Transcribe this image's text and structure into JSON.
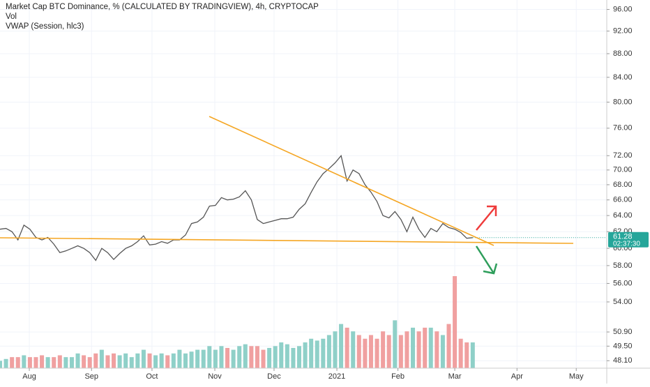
{
  "chart_data": {
    "type": "line",
    "title": "Market Cap BTC Dominance, % (CALCULATED BY TRADINGVIEW), 4h, CRYPTOCAP",
    "indicators": [
      "Vol",
      "VWAP (Session, hlc3)"
    ],
    "countdown": "02:37:30",
    "log_scale": true,
    "ylim": [
      47.4,
      97.8
    ],
    "yticks": [
      {
        "value": 96,
        "label": "96.00"
      },
      {
        "value": 92,
        "label": "92.00"
      },
      {
        "value": 88,
        "label": "88.00"
      },
      {
        "value": 84,
        "label": "84.00"
      },
      {
        "value": 80,
        "label": "80.00"
      },
      {
        "value": 76,
        "label": "76.00"
      },
      {
        "value": 72,
        "label": "72.00"
      },
      {
        "value": 70,
        "label": "70.00"
      },
      {
        "value": 68,
        "label": "68.00"
      },
      {
        "value": 66,
        "label": "66.00"
      },
      {
        "value": 64,
        "label": "64.00"
      },
      {
        "value": 62,
        "label": "62.00"
      },
      {
        "value": 60,
        "label": "60.00"
      },
      {
        "value": 58,
        "label": "58.00"
      },
      {
        "value": 56,
        "label": "56.00"
      },
      {
        "value": 54,
        "label": "54.00"
      },
      {
        "value": 50.9,
        "label": "50.90"
      },
      {
        "value": 49.5,
        "label": "49.50"
      },
      {
        "value": 48.1,
        "label": "48.10"
      }
    ],
    "xlim": [
      0,
      101.4
    ],
    "xticks": [
      {
        "value": 4.9,
        "label": "Aug"
      },
      {
        "value": 15.3,
        "label": "Sep"
      },
      {
        "value": 25.4,
        "label": "Oct"
      },
      {
        "value": 35.9,
        "label": "Nov"
      },
      {
        "value": 45.8,
        "label": "Dec"
      },
      {
        "value": 56.3,
        "label": "2021"
      },
      {
        "value": 66.5,
        "label": "Feb"
      },
      {
        "value": 76,
        "label": "Mar"
      },
      {
        "value": 86.4,
        "label": "Apr"
      },
      {
        "value": 96.3,
        "label": "May"
      }
    ],
    "y2lim": [
      0,
      100
    ],
    "series": [
      {
        "name": "BTC Dominance",
        "color": "#555555",
        "values": [
          62.3,
          62.4,
          62.0,
          61.0,
          62.8,
          62.3,
          61.3,
          61.0,
          61.3,
          60.5,
          59.5,
          59.7,
          60.0,
          60.3,
          60.0,
          59.5,
          58.6,
          60.0,
          59.5,
          58.7,
          59.4,
          60.0,
          60.3,
          60.8,
          61.5,
          60.4,
          60.5,
          60.8,
          60.6,
          61.0,
          61.0,
          61.6,
          63.0,
          63.2,
          63.8,
          65.2,
          65.3,
          66.3,
          66.0,
          66.1,
          66.4,
          67.2,
          66.0,
          63.5,
          63.0,
          63.2,
          63.4,
          63.6,
          63.6,
          63.8,
          64.8,
          65.5,
          67.0,
          68.4,
          69.5,
          70.2,
          71.0,
          72.0,
          68.5,
          70.0,
          69.5,
          68.0,
          67.0,
          65.8,
          64.0,
          63.7,
          64.5,
          63.5,
          62.0,
          63.8,
          62.3,
          61.3,
          62.4,
          62.0,
          63.0,
          62.5,
          62.3,
          61.9,
          61.2,
          61.28
        ]
      },
      {
        "name": "Vol",
        "axis": "y2",
        "values": [
          2,
          2.5,
          3,
          3,
          3.5,
          3,
          3,
          3.5,
          3,
          3,
          3.5,
          3,
          3,
          4,
          3.5,
          3,
          4,
          5,
          3.5,
          4,
          3.5,
          4,
          3,
          4,
          5,
          4,
          3.5,
          4,
          3.5,
          4,
          5,
          4,
          4.5,
          5,
          5,
          6,
          5,
          6,
          5.5,
          5,
          6,
          6.5,
          6,
          6,
          5,
          5.5,
          6,
          7,
          6.5,
          5.5,
          6,
          7,
          8,
          7.5,
          8,
          9,
          10,
          12,
          11,
          10,
          9,
          8,
          9,
          8,
          10,
          9,
          13,
          9,
          10,
          11,
          10,
          11,
          11,
          10,
          9,
          12,
          25,
          8,
          7,
          7
        ]
      }
    ]
  }
}
